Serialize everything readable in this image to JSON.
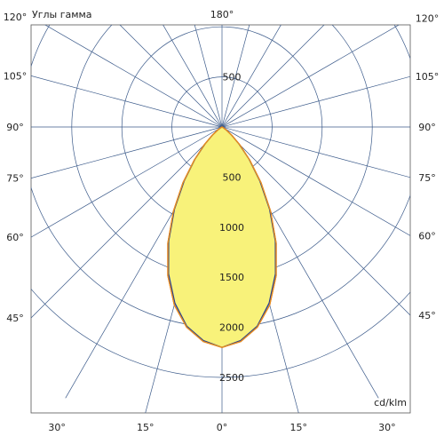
{
  "chart_data": {
    "type": "polar-luminous-intensity",
    "title": "Углы гамма",
    "unit_label": "cd/klm",
    "top_angle_label": "180°",
    "radial_max": 2500,
    "radial_rings": [
      500,
      1000,
      1500,
      2000,
      2500
    ],
    "radial_labels_upper": [
      {
        "value": 500,
        "text": "500"
      }
    ],
    "radial_labels_lower": [
      {
        "value": 500,
        "text": "500"
      },
      {
        "value": 1000,
        "text": "1000"
      },
      {
        "value": 1500,
        "text": "1500"
      },
      {
        "value": 2000,
        "text": "2000"
      },
      {
        "value": 2500,
        "text": "2500"
      }
    ],
    "spoke_step_deg": 15,
    "left_angle_labels": [
      {
        "deg": 120,
        "text": "120°"
      },
      {
        "deg": 105,
        "text": "105°"
      },
      {
        "deg": 90,
        "text": "90°"
      },
      {
        "deg": 75,
        "text": "75°"
      },
      {
        "deg": 60,
        "text": "60°"
      },
      {
        "deg": 45,
        "text": "45°"
      }
    ],
    "right_angle_labels": [
      {
        "deg": 120,
        "text": "120°"
      },
      {
        "deg": 105,
        "text": "105°"
      },
      {
        "deg": 90,
        "text": "90°"
      },
      {
        "deg": 75,
        "text": "75°"
      },
      {
        "deg": 60,
        "text": "60°"
      },
      {
        "deg": 45,
        "text": "45°"
      }
    ],
    "bottom_angle_labels": [
      {
        "deg": -30,
        "text": "30°"
      },
      {
        "deg": -15,
        "text": "15°"
      },
      {
        "deg": 0,
        "text": "0°"
      },
      {
        "deg": 15,
        "text": "15°"
      },
      {
        "deg": 30,
        "text": "30°"
      }
    ],
    "fill_color": "#f8f27a",
    "series": [
      {
        "color": "#1f3f9a",
        "angles": [
          0,
          5,
          10,
          15,
          20,
          25,
          30,
          35,
          40,
          45,
          50,
          55,
          60,
          90
        ],
        "values": [
          2200,
          2140,
          2020,
          1820,
          1560,
          1260,
          950,
          660,
          420,
          240,
          120,
          50,
          15,
          0
        ]
      },
      {
        "color": "#d13a1f",
        "angles": [
          0,
          5,
          10,
          15,
          20,
          25,
          30,
          35,
          40,
          45,
          50,
          55,
          60,
          90
        ],
        "values": [
          2200,
          2150,
          2030,
          1840,
          1580,
          1280,
          970,
          680,
          430,
          250,
          125,
          52,
          16,
          0
        ]
      },
      {
        "color": "#e6921e",
        "angles": [
          0,
          5,
          10,
          15,
          20,
          25,
          30,
          35,
          40,
          45,
          50,
          55,
          60,
          90
        ],
        "values": [
          2200,
          2150,
          2030,
          1840,
          1580,
          1280,
          970,
          680,
          430,
          250,
          125,
          52,
          16,
          0
        ]
      }
    ]
  }
}
